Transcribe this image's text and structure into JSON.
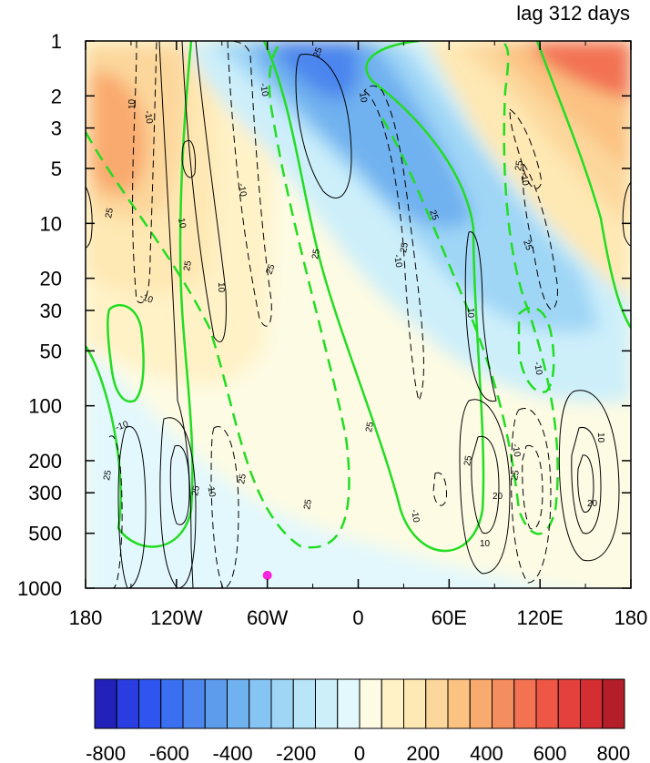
{
  "chart_data": {
    "type": "heatmap",
    "title": "lag 312 days",
    "x_ticks": [
      "180",
      "120W",
      "60W",
      "0",
      "60E",
      "120E",
      "180"
    ],
    "x_tick_lon": [
      -180,
      -120,
      -60,
      0,
      60,
      120,
      180
    ],
    "y_ticks": [
      "1",
      "2",
      "3",
      "5",
      "10",
      "20",
      "30",
      "50",
      "100",
      "200",
      "300",
      "500",
      "1000"
    ],
    "y_tick_p": [
      1,
      2,
      3,
      5,
      10,
      20,
      30,
      50,
      100,
      200,
      300,
      500,
      1000
    ],
    "y_scale": "log",
    "xlim": [
      -180,
      180
    ],
    "ylim": [
      1000,
      1
    ],
    "colorbar": {
      "min": -800,
      "max": 800,
      "step": 50,
      "tick_labels": [
        "-800",
        "-600",
        "-400",
        "-200",
        "0",
        "200",
        "400",
        "600",
        "800"
      ],
      "tick_values": [
        -800,
        -600,
        -400,
        -200,
        0,
        200,
        400,
        600,
        800
      ],
      "colors": [
        "#2222bb",
        "#2a3de0",
        "#2f55f0",
        "#3a6ff0",
        "#4c86ee",
        "#5c9ceb",
        "#70b1ef",
        "#86c4f4",
        "#9fd6f6",
        "#b8e5f8",
        "#cdeffa",
        "#e3f8fd",
        "#fdfbe3",
        "#fff2c7",
        "#fee8b3",
        "#fcd79b",
        "#fbc282",
        "#f9aa6e",
        "#f58e5e",
        "#f27252",
        "#ee5646",
        "#e5413c",
        "#d42e32",
        "#b31e29"
      ]
    },
    "shading_regions": [
      {
        "label": "positive",
        "value": 250,
        "where": "upper left stratosphere, 180-140W, 2-20 hPa"
      },
      {
        "label": "positive",
        "value": 150,
        "where": "180-60W, 1-50 hPa"
      },
      {
        "label": "negative",
        "value": -300,
        "where": "40W-10W, 1-3 hPa"
      },
      {
        "label": "negative",
        "value": -250,
        "where": "0-90E, 3-30 hPa"
      },
      {
        "label": "negative",
        "value": -100,
        "where": "band descending from 60W at 1 hPa to 120E at 100 hPa"
      },
      {
        "label": "positive",
        "value": 350,
        "where": "100E-180, 1-3 hPa"
      },
      {
        "label": "positive",
        "value": 150,
        "where": "60E-180, 3-30 hPa"
      },
      {
        "label": "positive",
        "value": 50,
        "where": "central troposphere, 120W-120E, 100-1000 hPa"
      },
      {
        "label": "negative",
        "value": -25,
        "where": "western troposphere, 180-80W, 200-1000 hPa"
      }
    ],
    "contour_labels_green": [
      "25"
    ],
    "contour_labels_black": [
      "-10",
      "10",
      "20"
    ],
    "marker": {
      "lon": -60,
      "p": 850,
      "color": "#ff22dd"
    }
  }
}
